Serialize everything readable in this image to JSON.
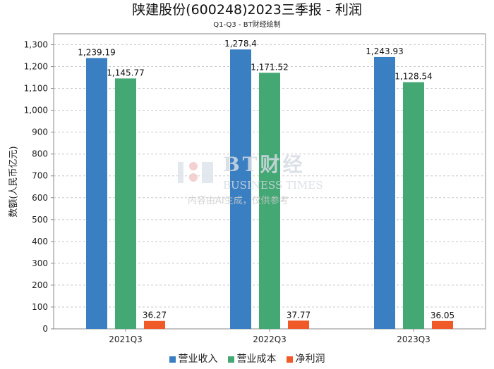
{
  "chart_data": {
    "type": "bar",
    "title": "陕建股份(600248)2023三季报 - 利润",
    "subtitle": "Q1-Q3 - BT财经绘制",
    "xlabel": "",
    "ylabel": "数额(人民币亿元)",
    "ylim": [
      0,
      1350
    ],
    "yticks": [
      0,
      100,
      200,
      300,
      400,
      500,
      600,
      700,
      800,
      900,
      1000,
      1100,
      1200,
      1300
    ],
    "ytick_labels": [
      "0",
      "100",
      "200",
      "300",
      "400",
      "500",
      "600",
      "700",
      "800",
      "900",
      "1,000",
      "1,100",
      "1,200",
      "1,300"
    ],
    "grid": true,
    "legend_position": "bottom",
    "categories": [
      "2021Q3",
      "2022Q3",
      "2023Q3"
    ],
    "series": [
      {
        "name": "营业收入",
        "color": "#3a7fc1",
        "values": [
          1239.19,
          1278.4,
          1243.93
        ],
        "labels": [
          "1,239.19",
          "1,278.4",
          "1,243.93"
        ]
      },
      {
        "name": "营业成本",
        "color": "#44a874",
        "values": [
          1145.77,
          1171.52,
          1128.54
        ],
        "labels": [
          "1,145.77",
          "1,171.52",
          "1,128.54"
        ]
      },
      {
        "name": "净利润",
        "color": "#f05a28",
        "values": [
          36.27,
          37.77,
          36.05
        ],
        "labels": [
          "36.27",
          "37.77",
          "36.05"
        ]
      }
    ]
  },
  "watermark": {
    "brand": "BT财经",
    "english": "BUSINESS TIMES",
    "note": "内容由AI生成，仅供参考"
  }
}
